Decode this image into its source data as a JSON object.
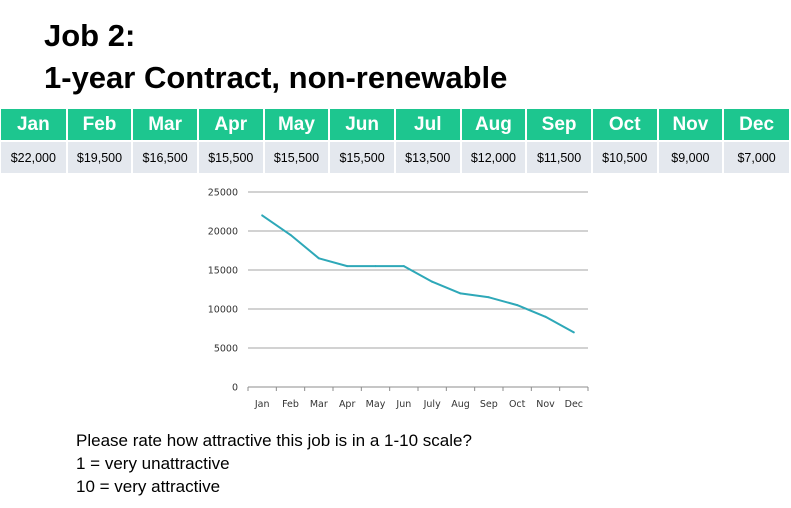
{
  "title_line1": "Job 2:",
  "title_line2": "1-year Contract, non-renewable",
  "table": {
    "headers": [
      "Jan",
      "Feb",
      "Mar",
      "Apr",
      "May",
      "Jun",
      "Jul",
      "Aug",
      "Sep",
      "Oct",
      "Nov",
      "Dec"
    ],
    "values": [
      "$22,000",
      "$19,500",
      "$16,500",
      "$15,500",
      "$15,500",
      "$15,500",
      "$13,500",
      "$12,000",
      "$11,500",
      "$10,500",
      "$9,000",
      "$7,000"
    ]
  },
  "chart_data": {
    "type": "line",
    "categories": [
      "Jan",
      "Feb",
      "Mar",
      "Apr",
      "May",
      "Jun",
      "July",
      "Aug",
      "Sep",
      "Oct",
      "Nov",
      "Dec"
    ],
    "series": [
      {
        "values": [
          22000,
          19500,
          16500,
          15500,
          15500,
          15500,
          13500,
          12000,
          11500,
          10500,
          9000,
          7000
        ]
      }
    ],
    "yticks": [
      "0",
      "5000",
      "10000",
      "15000",
      "20000",
      "25000"
    ],
    "ylim": [
      0,
      25000
    ],
    "grid": true,
    "line_color": "#2ea8b8",
    "title": "",
    "xlabel": "",
    "ylabel": ""
  },
  "question": {
    "line1": "Please rate how attractive this job is in a 1-10 scale?",
    "line2": "1 = very unattractive",
    "line3": "10 = very attractive"
  }
}
